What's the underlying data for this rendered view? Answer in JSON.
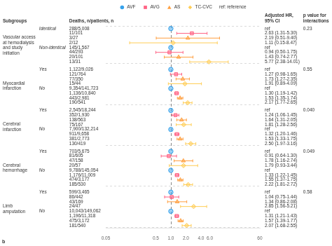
{
  "chart_data": {
    "type": "forest",
    "log": "x",
    "grid": false,
    "legend": "top",
    "tick_labels": "x",
    "xlim": [
      0.05,
      60.1
    ],
    "xticks": [
      0.05,
      0.5,
      {
        "value": 1,
        "label": "1.0"
      },
      {
        "value": 2,
        "label": "2.0"
      },
      {
        "value": 4,
        "label": "4.0"
      },
      {
        "value": 6,
        "label": "6.0"
      },
      60
    ],
    "reference_line": 1,
    "column_titles": [
      "Subgroups",
      "Deaths, n/patients, n",
      "Adjusted HR,\n95% CI",
      "p value for\ninteractions"
    ],
    "legend_note": "ref: reference",
    "panel_label": "b",
    "series": [
      {
        "name": "AVF",
        "marker": "circle"
      },
      {
        "name": "AVG",
        "marker": "square"
      },
      {
        "name": "AS",
        "marker": "triangle"
      },
      {
        "name": "TC-CVC",
        "marker": "diamond"
      }
    ],
    "sections": [
      {
        "name": [
          "Vascular access",
          "at hemodialysis",
          "and study",
          "initiation"
        ],
        "p_value": "0.23",
        "rows": [
          {
            "subtype": "Identical",
            "deaths": "288/5,008",
            "hr_label": "ref",
            "series": "AVF",
            "hr": 1
          },
          {
            "deaths": "11/101",
            "hr_label": "2.63 (1.31-5.30)",
            "series": "AVG",
            "hr": 2.63,
            "lo": 1.31,
            "hi": 5.3
          },
          {
            "deaths": "3/27",
            "hr_label": "2.19 (0.51-9.40)",
            "series": "AS",
            "hr": 2.19,
            "lo": 0.51,
            "hi": 9.4
          },
          {
            "deaths": "2/12",
            "hr_label": "1.11 (0.15-8.47)",
            "series": "TC-CVC",
            "hr": 1.11,
            "lo": 0.15,
            "hi": 8.47
          },
          {
            "subtype": "Non-identical",
            "deaths": "145/1,567",
            "hr_label": "ref",
            "series": "AVF",
            "hr": 1
          },
          {
            "deaths": "44/293",
            "hr_label": "0.94 (0.50-1.75)",
            "series": "AVG",
            "hr": 0.94,
            "lo": 0.5,
            "hi": 1.75
          },
          {
            "deaths": "20/101",
            "hr_label": "1.43 (0.74-2.77)",
            "series": "AS",
            "hr": 1.43,
            "lo": 0.74,
            "hi": 2.77
          },
          {
            "deaths": "13/31",
            "hr_label": "5.77 (2.38-14.01)",
            "series": "TC-CVC",
            "hr": 5.77,
            "lo": 2.38,
            "hi": 14.01
          }
        ]
      },
      {
        "name": [
          "Myocardial",
          "infarction"
        ],
        "p_value": "0.55",
        "rows": [
          {
            "subtype": "Yes",
            "deaths": "1,122/9,026",
            "hr_label": "ref",
            "series": "AVF",
            "hr": 1
          },
          {
            "deaths": "121/764",
            "hr_label": "1.27 (0.98-1.65)",
            "series": "AVG",
            "hr": 1.27,
            "lo": 0.98,
            "hi": 1.65
          },
          {
            "deaths": "77/350",
            "hr_label": "1.73 (1.27-2.35)",
            "series": "AS",
            "hr": 1.73,
            "lo": 1.27,
            "hi": 2.35
          },
          {
            "deaths": "15/44",
            "hr_label": "1.91 (0.89-4.09)",
            "series": "TC-CVC",
            "hr": 1.91,
            "lo": 0.89,
            "hi": 4.09
          },
          {
            "subtype": "No",
            "deaths": "9,354/141,723",
            "hr_label": "ref",
            "series": "AVF",
            "hr": 1
          },
          {
            "deaths": "1,136/10,840",
            "hr_label": "1.30 (1.19-1.42)",
            "series": "AVG",
            "hr": 1.3,
            "lo": 1.19,
            "hi": 1.42
          },
          {
            "deaths": "443/2,981",
            "hr_label": "1.53 (1.35-1.74)",
            "series": "AS",
            "hr": 1.53,
            "lo": 1.35,
            "hi": 1.74
          },
          {
            "deaths": "190/541",
            "hr_label": "2.17 (1.77-2.65)",
            "series": "TC-CVC",
            "hr": 2.17,
            "lo": 1.77,
            "hi": 2.65
          }
        ]
      },
      {
        "name": [
          "Cerebral",
          "infarction"
        ],
        "p_value": "0.040",
        "rows": [
          {
            "subtype": "Yes",
            "deaths": "2,545/18,244",
            "hr_label": "ref",
            "series": "AVF",
            "hr": 1
          },
          {
            "deaths": "352/1,930",
            "hr_label": "1.24 (1.06-1.45)",
            "series": "AVG",
            "hr": 1.24,
            "lo": 1.06,
            "hi": 1.45
          },
          {
            "deaths": "138/563",
            "hr_label": "1.64 (1.31-2.05)",
            "series": "AS",
            "hr": 1.64,
            "lo": 1.31,
            "hi": 2.05
          },
          {
            "deaths": "75/167",
            "hr_label": "1.81 (1.28-2.56)",
            "series": "TC-CVC",
            "hr": 1.81,
            "lo": 1.28,
            "hi": 2.56
          },
          {
            "subtype": "No",
            "deaths": "7,900/132,214",
            "hr_label": "ref",
            "series": "AVF",
            "hr": 1
          },
          {
            "deaths": "911/9,658",
            "hr_label": "1.32 (1.20-1.46)",
            "series": "AVG",
            "hr": 1.32,
            "lo": 1.2,
            "hi": 1.46
          },
          {
            "deaths": "381/2,773",
            "hr_label": "1.53 (1.33-1.75)",
            "series": "AS",
            "hr": 1.53,
            "lo": 1.33,
            "hi": 1.75
          },
          {
            "deaths": "130/419",
            "hr_label": "2.50 (1.97-3.16)",
            "series": "TC-CVC",
            "hr": 2.5,
            "lo": 1.97,
            "hi": 3.16
          }
        ]
      },
      {
        "name": [
          "Cerebral",
          "hemorrhage"
        ],
        "p_value": "0.049",
        "rows": [
          {
            "subtype": "Yes",
            "deaths": "703/5,675",
            "hr_label": "ref",
            "series": "AVF",
            "hr": 1
          },
          {
            "deaths": "81/605",
            "hr_label": "0.91 (0.64-1.30)",
            "series": "AVG",
            "hr": 0.91,
            "lo": 0.64,
            "hi": 1.3
          },
          {
            "deaths": "47/158",
            "hr_label": "1.78 (1.16-2.74)",
            "series": "AS",
            "hr": 1.78,
            "lo": 1.16,
            "hi": 2.74
          },
          {
            "deaths": "20/57",
            "hr_label": "1.79 (0.93-3.44)",
            "series": "TC-CVC",
            "hr": 1.79,
            "lo": 0.93,
            "hi": 3.44
          },
          {
            "subtype": "No",
            "deaths": "9,788/145,054",
            "hr_label": "ref",
            "series": "AVF",
            "hr": 1
          },
          {
            "deaths": "1,176/11,009",
            "hr_label": "1.33 (1.22-1.45)",
            "series": "AVG",
            "hr": 1.33,
            "lo": 1.22,
            "hi": 1.45
          },
          {
            "deaths": "474/3,177",
            "hr_label": "1.55 (1.37-1.75)",
            "series": "AS",
            "hr": 1.55,
            "lo": 1.37,
            "hi": 1.75
          },
          {
            "deaths": "185/530",
            "hr_label": "2.22 (1.81-2.72)",
            "series": "TC-CVC",
            "hr": 2.22,
            "lo": 1.81,
            "hi": 2.72
          }
        ]
      },
      {
        "name": [
          "Limb",
          "amputation"
        ],
        "p_value": "0.58",
        "rows": [
          {
            "subtype": "Yes",
            "deaths": "599/3,465",
            "hr_label": "ref",
            "series": "AVF",
            "hr": 1
          },
          {
            "deaths": "86/442",
            "hr_label": "1.04 (0.75-1.44)",
            "series": "AVG",
            "hr": 1.04,
            "lo": 0.75,
            "hi": 1.44
          },
          {
            "deaths": "43/169",
            "hr_label": "1.34 (0.86-2.08)",
            "series": "AS",
            "hr": 1.34,
            "lo": 0.86,
            "hi": 2.08
          },
          {
            "deaths": "24/47",
            "hr_label": "2.85 (1.56-5.21)",
            "series": "TC-CVC",
            "hr": 2.85,
            "lo": 1.56,
            "hi": 5.21
          },
          {
            "subtype": "No",
            "deaths": "10,043/149,062",
            "hr_label": "ref",
            "series": "AVF",
            "hr": 1
          },
          {
            "deaths": "1,196/11,318",
            "hr_label": "1.31 (1.21-1.43)",
            "series": "AVG",
            "hr": 1.31,
            "lo": 1.21,
            "hi": 1.43
          },
          {
            "deaths": "475/3,172",
            "hr_label": "1.57 (1.39-1.77)",
            "series": "AS",
            "hr": 1.57,
            "lo": 1.39,
            "hi": 1.77
          },
          {
            "deaths": "181/540",
            "hr_label": "2.07 (1.68-2.55)",
            "series": "TC-CVC",
            "hr": 2.07,
            "lo": 1.68,
            "hi": 2.55
          }
        ]
      }
    ]
  }
}
